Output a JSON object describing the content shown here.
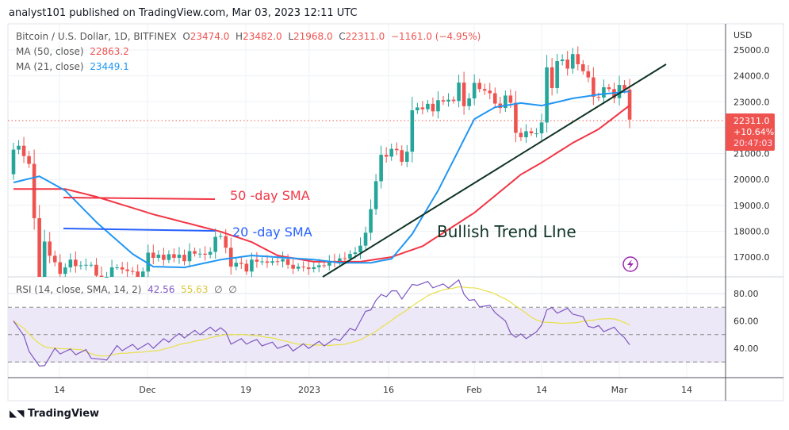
{
  "header": {
    "published": "analyst101 published on TradingView.com, Mar 03, 2023 12:11 UTC"
  },
  "legend": {
    "symbol": "Bitcoin / U.S. Dollar, 1D, BITFINEX",
    "o_label": "O",
    "o": "23474.0",
    "h_label": "H",
    "h": "23482.0",
    "l_label": "L",
    "l": "21968.0",
    "c_label": "C",
    "c": "22311.0",
    "change": "−1161.0 (−4.95%)",
    "ma50_label": "MA (50, close)",
    "ma50_value": "22863.2",
    "ma21_label": "MA (21, close)",
    "ma21_value": "23449.1",
    "rsi_label": "RSI (14, close, SMA, 14, 2)",
    "rsi_value": "42.56",
    "rsi_ma_value": "55.63",
    "rsi_extra1": "∅",
    "rsi_extra2": "∅"
  },
  "price_axis": {
    "currency": "USD",
    "ticks": [
      "25000.0",
      "24000.0",
      "23000.0",
      "21000.0",
      "20000.0",
      "19000.0",
      "18000.0",
      "17000.0"
    ],
    "last_price": "22311.0",
    "last_change": "+10.64%",
    "countdown": "20:47:03"
  },
  "rsi_axis": {
    "ticks": [
      "80.00",
      "60.00",
      "40.00"
    ]
  },
  "time_axis": {
    "ticks": [
      "14",
      "Dec",
      "19",
      "2023",
      "16",
      "Feb",
      "14",
      "Mar",
      "14"
    ]
  },
  "annotations": {
    "sma50": "50 -day SMA",
    "sma20": "20 -day SMA",
    "trend": "Bullish Trend LIne"
  },
  "footer": {
    "brand": "TradingView"
  },
  "colors": {
    "up": "#26a69a",
    "down": "#ef5350",
    "ma50": "#f23645",
    "ma21": "#2196f3",
    "rsi": "#7e57c2",
    "rsi_ma": "#e8e04a",
    "trend": "#0f3325",
    "sma20_line": "#2962ff"
  },
  "chart_data": {
    "type": "candlestick",
    "start_date": "2022-11-04",
    "closes": [
      21150,
      21300,
      20900,
      20600,
      18500,
      15900,
      17600,
      17050,
      16800,
      16350,
      16600,
      16900,
      16650,
      16680,
      16700,
      16700,
      16280,
      15780,
      16200,
      16600,
      16600,
      16520,
      16460,
      16440,
      16220,
      16440,
      17170,
      16970,
      17090,
      16890,
      17110,
      16970,
      17090,
      16840,
      17230,
      17130,
      17130,
      17090,
      17200,
      17780,
      17810,
      17360,
      16630,
      16780,
      16740,
      16440,
      16900,
      16820,
      16830,
      16780,
      16840,
      16830,
      16920,
      16700,
      16550,
      16630,
      16600,
      16540,
      16610,
      16680,
      16670,
      16850,
      16830,
      16950,
      16940,
      17120,
      17180,
      17440,
      17940,
      18850,
      19930,
      20950,
      20880,
      21180,
      21130,
      20680,
      21070,
      22670,
      22780,
      22710,
      22920,
      22630,
      23060,
      23010,
      23080,
      23030,
      23740,
      22830,
      23130,
      23730,
      23490,
      23430,
      23330,
      22930,
      22760,
      23240,
      22960,
      21800,
      21630,
      21860,
      21780,
      21780,
      22200,
      24330,
      23530,
      24570,
      24630,
      24280,
      24840,
      24450,
      24180,
      23940,
      23190,
      23160,
      23560,
      23490,
      23140,
      23650,
      23470,
      22311
    ],
    "first_open": 20200,
    "ma21": [
      [
        0,
        19880
      ],
      [
        5,
        20120
      ],
      [
        10,
        19570
      ],
      [
        16,
        18350
      ],
      [
        23,
        17120
      ],
      [
        27,
        16630
      ],
      [
        33,
        16600
      ],
      [
        40,
        16900
      ],
      [
        46,
        17060
      ],
      [
        58,
        16900
      ],
      [
        63,
        16780
      ],
      [
        69,
        16780
      ],
      [
        73,
        16930
      ],
      [
        77,
        17890
      ],
      [
        82,
        19570
      ],
      [
        89,
        22330
      ],
      [
        93,
        22790
      ],
      [
        98,
        22950
      ],
      [
        102,
        22850
      ],
      [
        108,
        23130
      ],
      [
        113,
        23280
      ],
      [
        119,
        23400
      ]
    ],
    "ma50": [
      [
        0,
        19630
      ],
      [
        10,
        19630
      ],
      [
        16,
        19330
      ],
      [
        27,
        18650
      ],
      [
        40,
        17980
      ],
      [
        46,
        17580
      ],
      [
        51,
        17060
      ],
      [
        58,
        16820
      ],
      [
        67,
        16820
      ],
      [
        73,
        17000
      ],
      [
        79,
        17420
      ],
      [
        89,
        18710
      ],
      [
        98,
        20190
      ],
      [
        102,
        20650
      ],
      [
        108,
        21410
      ],
      [
        113,
        21940
      ],
      [
        119,
        22860
      ]
    ],
    "rsi": [
      [
        0,
        62
      ],
      [
        5,
        25
      ],
      [
        8,
        38
      ],
      [
        14,
        37
      ],
      [
        17,
        30
      ],
      [
        20,
        40
      ],
      [
        27,
        42
      ],
      [
        31,
        48
      ],
      [
        40,
        55
      ],
      [
        42,
        45
      ],
      [
        46,
        45
      ],
      [
        54,
        40
      ],
      [
        62,
        45
      ],
      [
        66,
        55
      ],
      [
        70,
        75
      ],
      [
        73,
        82
      ],
      [
        75,
        78
      ],
      [
        78,
        88
      ],
      [
        83,
        85
      ],
      [
        86,
        88
      ],
      [
        88,
        75
      ],
      [
        93,
        68
      ],
      [
        97,
        48
      ],
      [
        101,
        50
      ],
      [
        103,
        68
      ],
      [
        108,
        67
      ],
      [
        112,
        55
      ],
      [
        117,
        53
      ],
      [
        119,
        42.56
      ]
    ],
    "price_range": [
      16250,
      25500
    ],
    "rsi_range": [
      20,
      90
    ],
    "rsi_bands": [
      30,
      50,
      70
    ]
  }
}
